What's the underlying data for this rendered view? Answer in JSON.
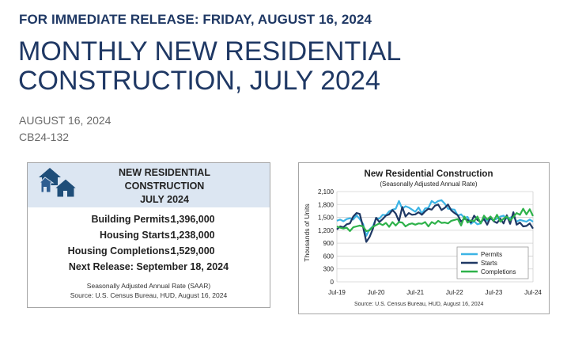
{
  "release_line": "FOR IMMEDIATE RELEASE: FRIDAY, AUGUST 16, 2024",
  "headline_line1": "MONTHLY NEW RESIDENTIAL",
  "headline_line2": "CONSTRUCTION, JULY 2024",
  "date": "AUGUST 16, 2024",
  "release_id": "CB24-132",
  "card": {
    "title_line1": "NEW RESIDENTIAL",
    "title_line2": "CONSTRUCTION",
    "title_line3": "JULY 2024",
    "stats": [
      {
        "label": "Building Permits:",
        "value": "1,396,000"
      },
      {
        "label": "Housing Starts:",
        "value": "1,238,000"
      },
      {
        "label": "Housing Completions:",
        "value": "1,529,000"
      }
    ],
    "next_release": "Next Release:  September 18, 2024",
    "footnote1": "Seasonally Adjusted Annual Rate (SAAR)",
    "footnote2": "Source:  U.S. Census Bureau, HUD, August 16, 2024",
    "accent": "#1f4e79",
    "header_bg": "#dce6f2",
    "icon": "houses-icon"
  },
  "chart_data": {
    "type": "line",
    "title": "New Residential Construction",
    "subtitle": "(Seasonally Adjusted Annual Rate)",
    "ylabel": "Thousands of Units",
    "xlabel": "",
    "source": "Source:  U.S. Census Bureau, HUD, August 16, 2024",
    "ylim": [
      0,
      2100
    ],
    "yticks": [
      "0",
      "300",
      "600",
      "900",
      "1,200",
      "1,500",
      "1,800",
      "2,100"
    ],
    "ytick_values": [
      0,
      300,
      600,
      900,
      1200,
      1500,
      1800,
      2100
    ],
    "xticks": [
      "Jul-19",
      "Jul-20",
      "Jul-21",
      "Jul-22",
      "Jul-23",
      "Jul-24"
    ],
    "xtick_index": [
      0,
      12,
      24,
      36,
      48,
      60
    ],
    "grid": true,
    "legend_position": "bottom-right",
    "series": [
      {
        "name": "Permits",
        "color": "#3cb4e5",
        "values": [
          1420,
          1450,
          1410,
          1460,
          1480,
          1450,
          1550,
          1460,
          1350,
          1070,
          1220,
          1290,
          1480,
          1470,
          1560,
          1550,
          1640,
          1680,
          1700,
          1880,
          1700,
          1760,
          1730,
          1680,
          1630,
          1730,
          1590,
          1710,
          1720,
          1880,
          1830,
          1880,
          1900,
          1820,
          1700,
          1690,
          1680,
          1540,
          1570,
          1490,
          1510,
          1350,
          1410,
          1340,
          1360,
          1480,
          1420,
          1460,
          1440,
          1470,
          1520,
          1540,
          1470,
          1490,
          1530,
          1400,
          1440,
          1420,
          1400,
          1450,
          1400
        ]
      },
      {
        "name": "Starts",
        "color": "#1f3864",
        "values": [
          1220,
          1290,
          1270,
          1340,
          1360,
          1520,
          1600,
          1580,
          1280,
          930,
          1040,
          1230,
          1490,
          1390,
          1460,
          1540,
          1570,
          1670,
          1590,
          1410,
          1740,
          1520,
          1600,
          1560,
          1570,
          1620,
          1560,
          1640,
          1700,
          1680,
          1770,
          1800,
          1670,
          1720,
          1800,
          1660,
          1600,
          1550,
          1400,
          1470,
          1440,
          1380,
          1540,
          1440,
          1390,
          1460,
          1330,
          1500,
          1410,
          1370,
          1470,
          1360,
          1550,
          1350,
          1620,
          1330,
          1380,
          1290,
          1300,
          1360,
          1240
        ]
      },
      {
        "name": "Completions",
        "color": "#2eb24a",
        "values": [
          1290,
          1260,
          1240,
          1260,
          1180,
          1270,
          1290,
          1310,
          1290,
          1180,
          1200,
          1280,
          1320,
          1360,
          1320,
          1370,
          1280,
          1390,
          1310,
          1390,
          1380,
          1290,
          1340,
          1360,
          1330,
          1360,
          1350,
          1390,
          1290,
          1390,
          1350,
          1420,
          1370,
          1380,
          1360,
          1420,
          1440,
          1460,
          1310,
          1520,
          1380,
          1430,
          1410,
          1520,
          1360,
          1540,
          1450,
          1520,
          1420,
          1560,
          1400,
          1470,
          1520,
          1430,
          1510,
          1600,
          1560,
          1700,
          1570,
          1690,
          1530
        ]
      }
    ]
  }
}
